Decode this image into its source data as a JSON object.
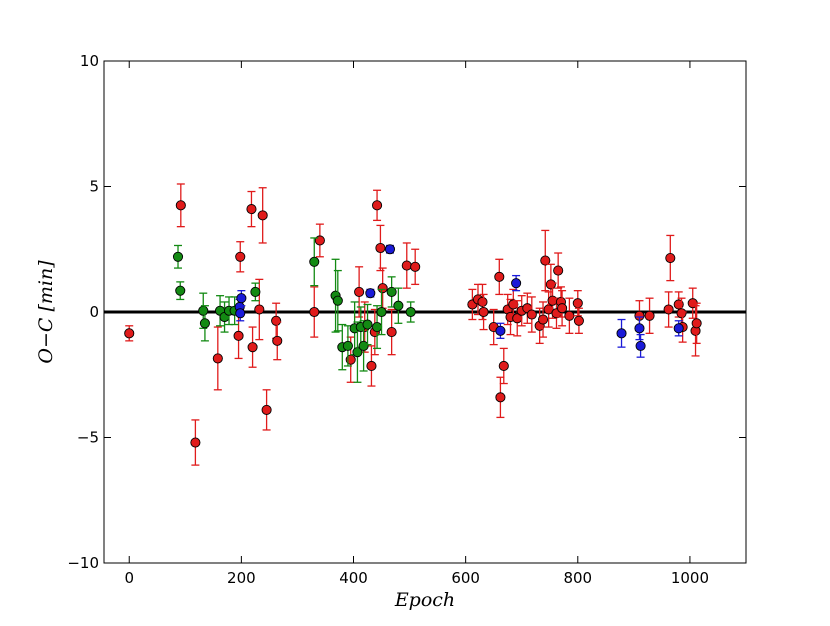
{
  "chart_data": {
    "type": "scatter",
    "title": "",
    "xlabel": "Epoch",
    "ylabel": "O−C [min]",
    "xlim": [
      -45,
      1100
    ],
    "ylim": [
      -10,
      10
    ],
    "xticks": [
      0,
      200,
      400,
      600,
      800,
      1000
    ],
    "yticks": [
      -10,
      -5,
      0,
      5,
      10
    ],
    "xtick_labels": [
      "0",
      "200",
      "400",
      "600",
      "800",
      "1000"
    ],
    "ytick_labels": [
      "−10",
      "−5",
      "0",
      "5",
      "10"
    ],
    "grid": false,
    "legend": "none",
    "reference_line": {
      "y": 0,
      "color": "#000000"
    },
    "series": [
      {
        "color": "#e01b1b",
        "points": [
          {
            "x": 0,
            "y": -0.85,
            "err": 0.3
          },
          {
            "x": 92,
            "y": 4.25,
            "err": 0.85
          },
          {
            "x": 118,
            "y": -5.2,
            "err": 0.9
          },
          {
            "x": 158,
            "y": -1.85,
            "err": 1.25
          },
          {
            "x": 195,
            "y": -0.95,
            "err": 0.9
          },
          {
            "x": 198,
            "y": 2.2,
            "err": 0.6
          },
          {
            "x": 218,
            "y": 4.1,
            "err": 0.7
          },
          {
            "x": 220,
            "y": -1.4,
            "err": 0.8
          },
          {
            "x": 232,
            "y": 0.1,
            "err": 1.2
          },
          {
            "x": 238,
            "y": 3.85,
            "err": 1.1
          },
          {
            "x": 245,
            "y": -3.9,
            "err": 0.8
          },
          {
            "x": 262,
            "y": -0.35,
            "err": 0.7
          },
          {
            "x": 264,
            "y": -1.15,
            "err": 0.75
          },
          {
            "x": 330,
            "y": 0.0,
            "err": 1.0
          },
          {
            "x": 340,
            "y": 2.85,
            "err": 0.65
          },
          {
            "x": 395,
            "y": -1.9,
            "err": 0.9
          },
          {
            "x": 410,
            "y": 0.8,
            "err": 1.0
          },
          {
            "x": 420,
            "y": -0.6,
            "err": 1.0
          },
          {
            "x": 432,
            "y": -2.15,
            "err": 0.8
          },
          {
            "x": 438,
            "y": -0.8,
            "err": 0.9
          },
          {
            "x": 442,
            "y": 4.25,
            "err": 0.6
          },
          {
            "x": 448,
            "y": 2.55,
            "err": 0.9
          },
          {
            "x": 452,
            "y": 0.95,
            "err": 0.8
          },
          {
            "x": 468,
            "y": -0.8,
            "err": 0.9
          },
          {
            "x": 495,
            "y": 1.85,
            "err": 0.9
          },
          {
            "x": 510,
            "y": 1.8,
            "err": 0.7
          },
          {
            "x": 612,
            "y": 0.3,
            "err": 0.6
          },
          {
            "x": 622,
            "y": 0.5,
            "err": 0.6
          },
          {
            "x": 630,
            "y": 0.4,
            "err": 0.7
          },
          {
            "x": 632,
            "y": 0.0,
            "err": 0.7
          },
          {
            "x": 650,
            "y": -0.6,
            "err": 0.7
          },
          {
            "x": 660,
            "y": 1.4,
            "err": 0.7
          },
          {
            "x": 662,
            "y": -3.4,
            "err": 0.8
          },
          {
            "x": 668,
            "y": -2.15,
            "err": 0.7
          },
          {
            "x": 675,
            "y": 0.1,
            "err": 0.6
          },
          {
            "x": 680,
            "y": -0.2,
            "err": 0.7
          },
          {
            "x": 685,
            "y": 0.3,
            "err": 0.6
          },
          {
            "x": 692,
            "y": -0.25,
            "err": 0.7
          },
          {
            "x": 700,
            "y": 0.05,
            "err": 0.6
          },
          {
            "x": 710,
            "y": 0.15,
            "err": 0.6
          },
          {
            "x": 718,
            "y": -0.1,
            "err": 0.7
          },
          {
            "x": 732,
            "y": -0.55,
            "err": 0.7
          },
          {
            "x": 738,
            "y": -0.3,
            "err": 0.7
          },
          {
            "x": 742,
            "y": 2.05,
            "err": 1.2
          },
          {
            "x": 748,
            "y": 0.1,
            "err": 0.7
          },
          {
            "x": 752,
            "y": 1.1,
            "err": 0.8
          },
          {
            "x": 755,
            "y": 0.45,
            "err": 0.7
          },
          {
            "x": 762,
            "y": -0.05,
            "err": 0.6
          },
          {
            "x": 765,
            "y": 1.65,
            "err": 0.7
          },
          {
            "x": 770,
            "y": 0.4,
            "err": 0.6
          },
          {
            "x": 772,
            "y": 0.15,
            "err": 0.7
          },
          {
            "x": 785,
            "y": -0.15,
            "err": 0.7
          },
          {
            "x": 800,
            "y": 0.35,
            "err": 0.5
          },
          {
            "x": 802,
            "y": -0.35,
            "err": 0.5
          },
          {
            "x": 910,
            "y": -0.15,
            "err": 0.6
          },
          {
            "x": 928,
            "y": -0.15,
            "err": 0.7
          },
          {
            "x": 962,
            "y": 0.1,
            "err": 0.7
          },
          {
            "x": 965,
            "y": 2.15,
            "err": 0.9
          },
          {
            "x": 980,
            "y": 0.3,
            "err": 0.5
          },
          {
            "x": 985,
            "y": -0.05,
            "err": 0.6
          },
          {
            "x": 987,
            "y": -0.6,
            "err": 0.6
          },
          {
            "x": 1005,
            "y": 0.35,
            "err": 0.6
          },
          {
            "x": 1010,
            "y": -0.75,
            "err": 1.0
          },
          {
            "x": 1012,
            "y": -0.45,
            "err": 0.8
          }
        ]
      },
      {
        "color": "#138a13",
        "points": [
          {
            "x": 87,
            "y": 2.2,
            "err": 0.45
          },
          {
            "x": 91,
            "y": 0.85,
            "err": 0.35
          },
          {
            "x": 132,
            "y": 0.05,
            "err": 0.7
          },
          {
            "x": 135,
            "y": -0.45,
            "err": 0.7
          },
          {
            "x": 162,
            "y": 0.05,
            "err": 0.6
          },
          {
            "x": 170,
            "y": -0.2,
            "err": 0.6
          },
          {
            "x": 178,
            "y": 0.05,
            "err": 0.55
          },
          {
            "x": 188,
            "y": 0.05,
            "err": 0.55
          },
          {
            "x": 225,
            "y": 0.8,
            "err": 0.35
          },
          {
            "x": 330,
            "y": 2.0,
            "err": 0.95
          },
          {
            "x": 368,
            "y": 0.65,
            "err": 1.45
          },
          {
            "x": 372,
            "y": 0.45,
            "err": 1.2
          },
          {
            "x": 380,
            "y": -1.4,
            "err": 0.9
          },
          {
            "x": 390,
            "y": -1.35,
            "err": 0.8
          },
          {
            "x": 402,
            "y": -0.65,
            "err": 1.05
          },
          {
            "x": 407,
            "y": -1.6,
            "err": 1.2
          },
          {
            "x": 413,
            "y": -0.6,
            "err": 0.8
          },
          {
            "x": 418,
            "y": -1.35,
            "err": 1.0
          },
          {
            "x": 425,
            "y": -0.5,
            "err": 0.8
          },
          {
            "x": 442,
            "y": -0.6,
            "err": 0.85
          },
          {
            "x": 450,
            "y": 0.0,
            "err": 0.9
          },
          {
            "x": 468,
            "y": 0.8,
            "err": 0.6
          },
          {
            "x": 480,
            "y": 0.25,
            "err": 0.7
          },
          {
            "x": 502,
            "y": 0.0,
            "err": 0.4
          }
        ]
      },
      {
        "color": "#1a1ad8",
        "points": [
          {
            "x": 197,
            "y": 0.2,
            "err": 0.3
          },
          {
            "x": 198,
            "y": -0.05,
            "err": 0.3
          },
          {
            "x": 200,
            "y": 0.55,
            "err": 0.3
          },
          {
            "x": 430,
            "y": 0.75,
            "err": 0.15
          },
          {
            "x": 465,
            "y": 2.5,
            "err": 0.15
          },
          {
            "x": 662,
            "y": -0.75,
            "err": 0.3
          },
          {
            "x": 690,
            "y": 1.15,
            "err": 0.3
          },
          {
            "x": 878,
            "y": -0.85,
            "err": 0.55
          },
          {
            "x": 910,
            "y": -0.65,
            "err": 0.45
          },
          {
            "x": 912,
            "y": -1.35,
            "err": 0.45
          },
          {
            "x": 980,
            "y": -0.65,
            "err": 0.3
          }
        ]
      }
    ]
  }
}
